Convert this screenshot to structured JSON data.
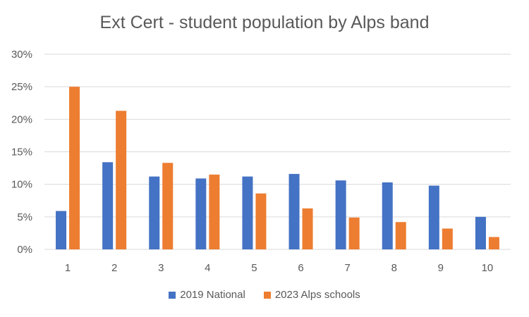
{
  "chart_data": {
    "type": "bar",
    "title": "Ext Cert - student population by Alps band",
    "xlabel": "",
    "ylabel": "",
    "categories": [
      "1",
      "2",
      "3",
      "4",
      "5",
      "6",
      "7",
      "8",
      "9",
      "10"
    ],
    "series": [
      {
        "name": "2019 National",
        "color": "#4472C4",
        "values": [
          5.9,
          13.4,
          11.2,
          10.9,
          11.2,
          11.6,
          10.6,
          10.3,
          9.8,
          5.0
        ]
      },
      {
        "name": "2023 Alps schools",
        "color": "#ED7D31",
        "values": [
          25.0,
          21.3,
          13.3,
          11.5,
          8.6,
          6.3,
          4.9,
          4.2,
          3.2,
          1.9
        ]
      }
    ],
    "ylim": [
      0,
      30
    ],
    "yticks": [
      0,
      5,
      10,
      15,
      20,
      25,
      30
    ],
    "ytick_labels": [
      "0%",
      "5%",
      "10%",
      "15%",
      "20%",
      "25%",
      "30%"
    ],
    "grid": true,
    "legend_position": "bottom",
    "gridline_color": "#D9D9D9"
  }
}
